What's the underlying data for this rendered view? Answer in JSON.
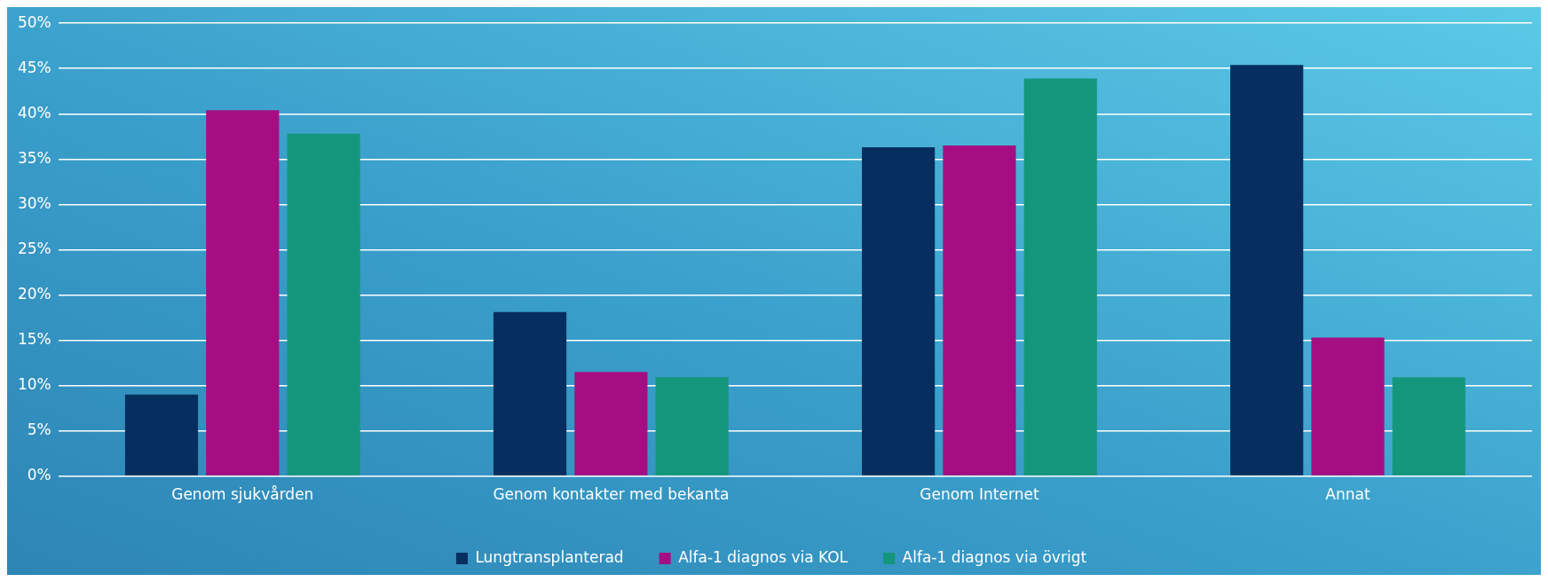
{
  "chart_data": {
    "type": "bar",
    "categories": [
      "Genom sjukvården",
      "Genom kontakter med bekanta",
      "Genom Internet",
      "Annat"
    ],
    "series": [
      {
        "name": "Lungtransplanterad",
        "color": "#062e5e",
        "values": [
          9.0,
          18.1,
          36.3,
          45.4
        ]
      },
      {
        "name": "Alfa-1 diagnos via KOL",
        "color": "#a50e82",
        "values": [
          40.4,
          11.5,
          36.5,
          15.3
        ]
      },
      {
        "name": "Alfa-1 diagnos via övrigt",
        "color": "#14967c",
        "values": [
          37.8,
          10.9,
          43.9,
          10.9
        ]
      }
    ],
    "ylim": [
      0,
      50
    ],
    "yticks": [
      {
        "value": 0,
        "label": "0%"
      },
      {
        "value": 5,
        "label": "5%"
      },
      {
        "value": 10,
        "label": "10%"
      },
      {
        "value": 15,
        "label": "15%"
      },
      {
        "value": 20,
        "label": "20%"
      },
      {
        "value": 25,
        "label": "25%"
      },
      {
        "value": 30,
        "label": "30%"
      },
      {
        "value": 35,
        "label": "35%"
      },
      {
        "value": 40,
        "label": "40%"
      },
      {
        "value": 45,
        "label": "45%"
      },
      {
        "value": 50,
        "label": "50%"
      }
    ],
    "grid": "y",
    "legend": "bottom"
  }
}
